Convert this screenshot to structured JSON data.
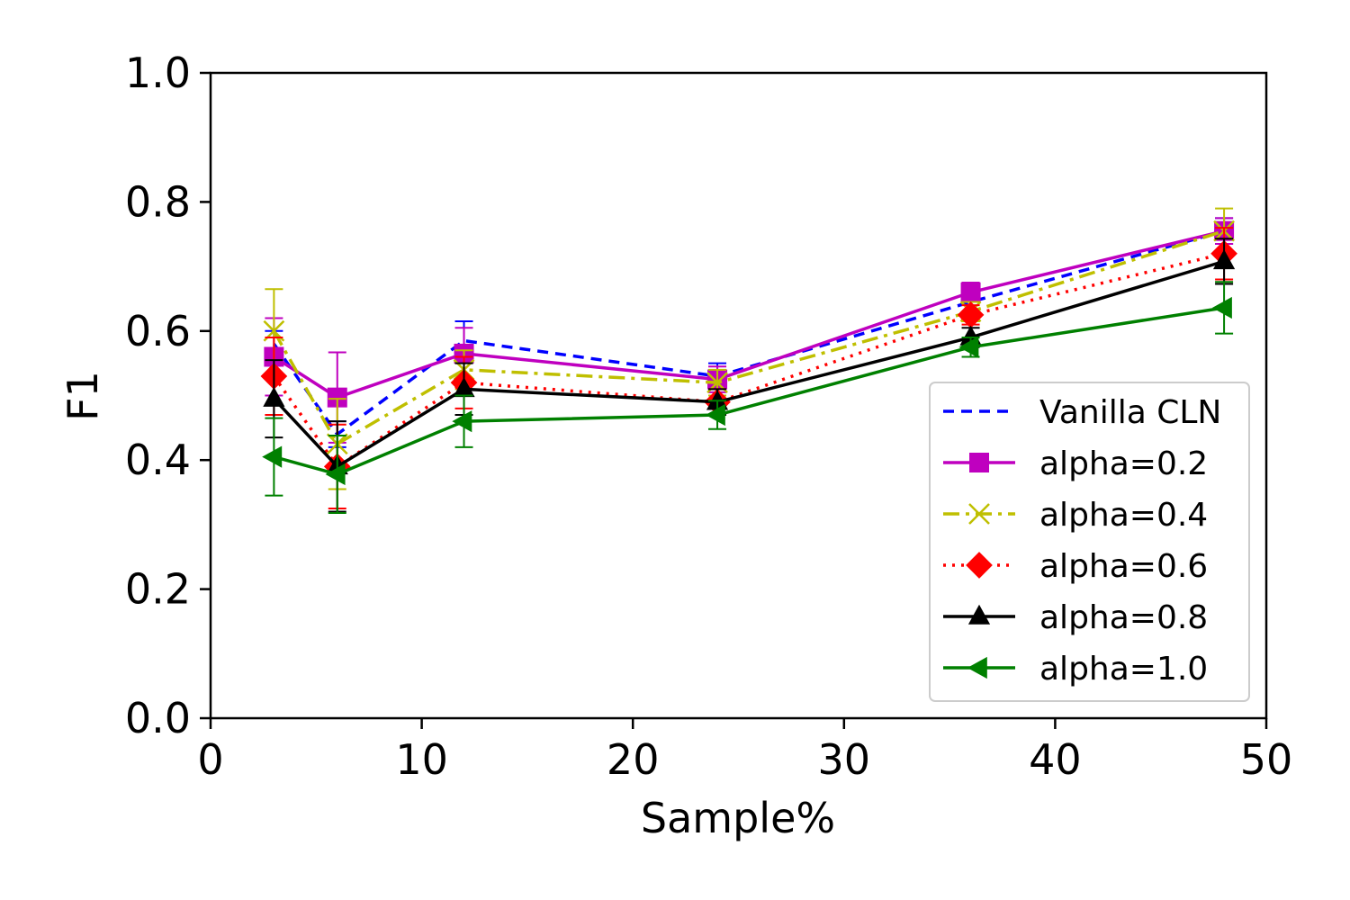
{
  "chart_data": {
    "type": "line",
    "title": "",
    "xlabel": "Sample%",
    "ylabel": "F1",
    "xlim": [
      0,
      50
    ],
    "ylim": [
      0.0,
      1.0
    ],
    "xticks": [
      0,
      10,
      20,
      30,
      40,
      50
    ],
    "xtick_labels": [
      "0",
      "10",
      "20",
      "30",
      "40",
      "50"
    ],
    "yticks": [
      0.0,
      0.2,
      0.4,
      0.6,
      0.8,
      1.0
    ],
    "ytick_labels": [
      "0.0",
      "0.2",
      "0.4",
      "0.6",
      "0.8",
      "1.0"
    ],
    "grid": false,
    "legend_position": "lower-right",
    "x": [
      3,
      6,
      12,
      24,
      36,
      48
    ],
    "series": [
      {
        "name": "Vanilla CLN",
        "color": "#0000ff",
        "line": "dashed",
        "marker": "none",
        "values": [
          0.58,
          0.44,
          0.585,
          0.53,
          0.645,
          0.755
        ],
        "errors": [
          0.02,
          0.02,
          0.03,
          0.02,
          0.02,
          0.02
        ]
      },
      {
        "name": "alpha=0.2",
        "color": "#bf00bf",
        "line": "solid",
        "marker": "square",
        "values": [
          0.56,
          0.497,
          0.565,
          0.525,
          0.66,
          0.755
        ],
        "errors": [
          0.06,
          0.07,
          0.04,
          0.02,
          0.015,
          0.02
        ]
      },
      {
        "name": "alpha=0.4",
        "color": "#bfbf00",
        "line": "dashdot",
        "marker": "x",
        "values": [
          0.6,
          0.425,
          0.54,
          0.52,
          0.63,
          0.755
        ],
        "errors": [
          0.065,
          0.07,
          0.03,
          0.02,
          0.015,
          0.035
        ]
      },
      {
        "name": "alpha=0.6",
        "color": "#ff0000",
        "line": "dotted",
        "marker": "diamond",
        "values": [
          0.53,
          0.39,
          0.52,
          0.49,
          0.625,
          0.72
        ],
        "errors": [
          0.06,
          0.065,
          0.04,
          0.02,
          0.015,
          0.04
        ]
      },
      {
        "name": "alpha=0.8",
        "color": "#000000",
        "line": "solid",
        "marker": "triangle-up",
        "values": [
          0.495,
          0.39,
          0.51,
          0.49,
          0.59,
          0.708
        ],
        "errors": [
          0.06,
          0.07,
          0.04,
          0.02,
          0.015,
          0.035
        ]
      },
      {
        "name": "alpha=1.0",
        "color": "#008000",
        "line": "solid",
        "marker": "triangle-left",
        "values": [
          0.405,
          0.378,
          0.46,
          0.47,
          0.575,
          0.636
        ],
        "errors": [
          0.06,
          0.06,
          0.04,
          0.022,
          0.015,
          0.04
        ]
      }
    ]
  }
}
